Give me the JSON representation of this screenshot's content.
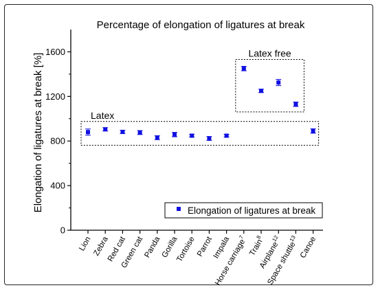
{
  "chart_data": {
    "type": "scatter",
    "title": "Percentage of elongation of ligatures at break",
    "xlabel": "",
    "ylabel": "Elongation of ligatures at break [%]",
    "ylim": [
      0,
      1800
    ],
    "yticks": [
      0,
      400,
      800,
      1200,
      1600
    ],
    "ytick_labels": [
      "0",
      "400",
      "800",
      "1200",
      "1600"
    ],
    "grid": false,
    "legend_position": "bottom-right",
    "categories": [
      {
        "label": "Lion",
        "sup": ""
      },
      {
        "label": "Zebra",
        "sup": ""
      },
      {
        "label": "Red cat",
        "sup": ""
      },
      {
        "label": "Green cat",
        "sup": ""
      },
      {
        "label": "Panda",
        "sup": ""
      },
      {
        "label": "Gorilla",
        "sup": ""
      },
      {
        "label": "Tortoise",
        "sup": ""
      },
      {
        "label": "Parrot",
        "sup": ""
      },
      {
        "label": "Impala",
        "sup": ""
      },
      {
        "label": "Horse carriage",
        "sup": "7"
      },
      {
        "label": "Train",
        "sup": "8"
      },
      {
        "label": "Airplane",
        "sup": "12"
      },
      {
        "label": "Space shuttle",
        "sup": "13"
      },
      {
        "label": "Canoe",
        "sup": ""
      }
    ],
    "series": [
      {
        "name": "Elongation of ligatures at break",
        "color": "#1010e0",
        "values": [
          880,
          905,
          882,
          876,
          830,
          858,
          848,
          823,
          848,
          1450,
          1250,
          1325,
          1130,
          890
        ],
        "errors": [
          28,
          15,
          15,
          18,
          18,
          20,
          12,
          18,
          12,
          20,
          15,
          28,
          20,
          20
        ]
      }
    ],
    "annotations": [
      {
        "text": "Latex",
        "group": "latex"
      },
      {
        "text": "Latex free",
        "group": "latex-free"
      }
    ]
  }
}
